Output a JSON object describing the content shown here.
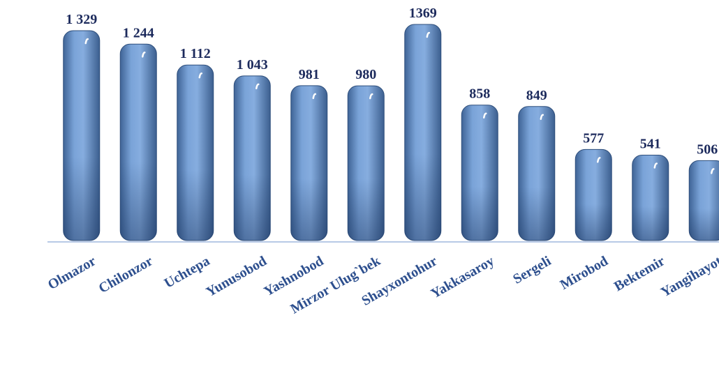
{
  "chart_data": {
    "type": "bar",
    "categories": [
      "Olmazor",
      "Chilonzor",
      "Uchtepa",
      "Yunusobod",
      "Yashnobod",
      "Mirzor Ulug`bek",
      "Shayxontohur",
      "Yakkasaroy",
      "Sergeli",
      "Mirobod",
      "Bektemir",
      "Yangihayot"
    ],
    "values": [
      1329,
      1244,
      1112,
      1043,
      981,
      980,
      1369,
      858,
      849,
      577,
      541,
      506
    ],
    "value_labels": [
      "1 329",
      "1 244",
      "1 112",
      "1 043",
      "981",
      "980",
      "1369",
      "858",
      "849",
      "577",
      "541",
      "506"
    ],
    "color": "#6f98cf"
  }
}
